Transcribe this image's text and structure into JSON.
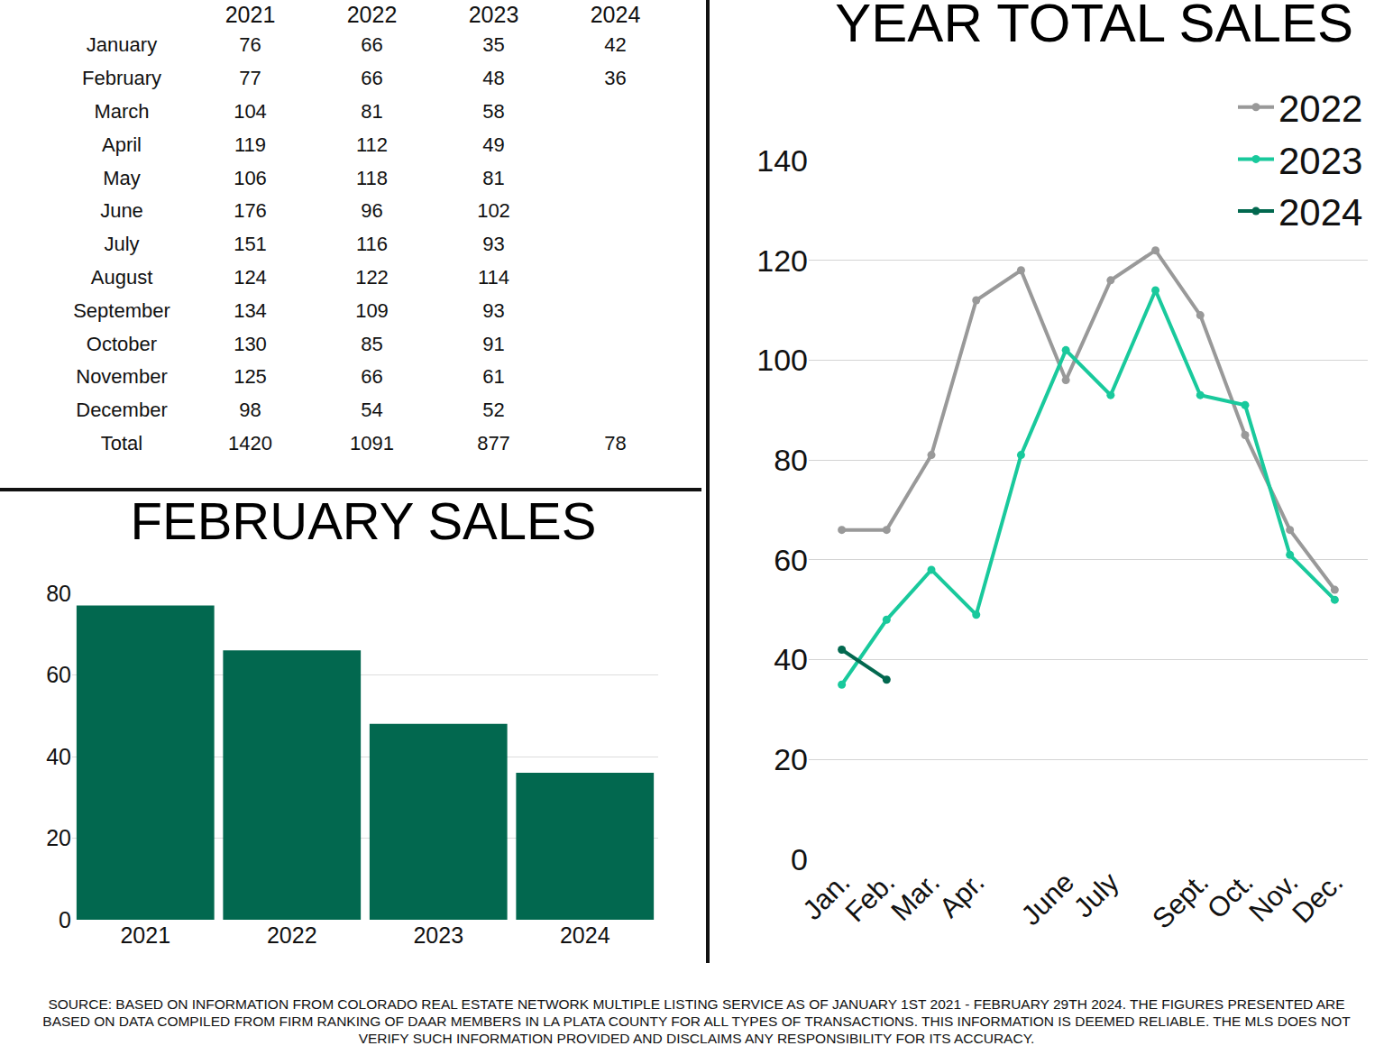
{
  "table": {
    "columns": [
      "2021",
      "2022",
      "2023",
      "2024"
    ],
    "rows": [
      {
        "label": "January",
        "values": [
          76,
          66,
          35,
          42
        ]
      },
      {
        "label": "February",
        "values": [
          77,
          66,
          48,
          36
        ]
      },
      {
        "label": "March",
        "values": [
          104,
          81,
          58,
          null
        ]
      },
      {
        "label": "April",
        "values": [
          119,
          112,
          49,
          null
        ]
      },
      {
        "label": "May",
        "values": [
          106,
          118,
          81,
          null
        ]
      },
      {
        "label": "June",
        "values": [
          176,
          96,
          102,
          null
        ]
      },
      {
        "label": "July",
        "values": [
          151,
          116,
          93,
          null
        ]
      },
      {
        "label": "August",
        "values": [
          124,
          122,
          114,
          null
        ]
      },
      {
        "label": "September",
        "values": [
          134,
          109,
          93,
          null
        ]
      },
      {
        "label": "October",
        "values": [
          130,
          85,
          91,
          null
        ]
      },
      {
        "label": "November",
        "values": [
          125,
          66,
          61,
          null
        ]
      },
      {
        "label": "December",
        "values": [
          98,
          54,
          52,
          null
        ]
      },
      {
        "label": "Total",
        "values": [
          1420,
          1091,
          877,
          78
        ]
      }
    ]
  },
  "chart_data": [
    {
      "type": "bar",
      "title": "FEBRUARY SALES",
      "categories": [
        "2021",
        "2022",
        "2023",
        "2024"
      ],
      "values": [
        77,
        66,
        48,
        36
      ],
      "color": "#02684f",
      "ylim": [
        0,
        80
      ],
      "yticks": [
        0,
        20,
        40,
        60,
        80
      ],
      "grid": true
    },
    {
      "type": "line",
      "title": "YEAR TOTAL SALES",
      "categories": [
        "Jan.",
        "Feb.",
        "Mar.",
        "Apr.",
        null,
        "June",
        "July",
        null,
        "Sept.",
        "Oct.",
        "Nov.",
        "Dec."
      ],
      "series": [
        {
          "name": "2022",
          "color": "#999999",
          "marker": "circle",
          "line_style": "solid",
          "values": [
            66,
            66,
            81,
            112,
            118,
            96,
            116,
            122,
            109,
            85,
            66,
            54
          ]
        },
        {
          "name": "2023",
          "color": "#19c99c",
          "marker": "circle",
          "line_style": "solid",
          "values": [
            35,
            48,
            58,
            49,
            81,
            102,
            93,
            114,
            93,
            91,
            61,
            52
          ]
        },
        {
          "name": "2024",
          "color": "#02684f",
          "marker": "circle",
          "line_style": "solid",
          "values": [
            42,
            36,
            null,
            null,
            null,
            null,
            null,
            null,
            null,
            null,
            null,
            null
          ]
        }
      ],
      "ylim": [
        0,
        140
      ],
      "yticks": [
        0,
        20,
        40,
        60,
        80,
        100,
        120,
        140
      ],
      "grid": true,
      "legend": "top right"
    }
  ],
  "source": "SOURCE: BASED ON INFORMATION FROM COLORADO REAL ESTATE NETWORK MULTIPLE LISTING SERVICE AS OF JANUARY 1ST 2021 - FEBRUARY 29TH 2024. THE FIGURES PRESENTED ARE BASED ON DATA COMPILED FROM FIRM RANKING OF DAAR MEMBERS IN LA PLATA COUNTY FOR ALL TYPES OF TRANSACTIONS. THIS INFORMATION IS DEEMED RELIABLE. THE MLS DOES NOT VERIFY SUCH INFORMATION PROVIDED AND DISCLAIMS ANY RESPONSIBILITY FOR ITS ACCURACY."
}
